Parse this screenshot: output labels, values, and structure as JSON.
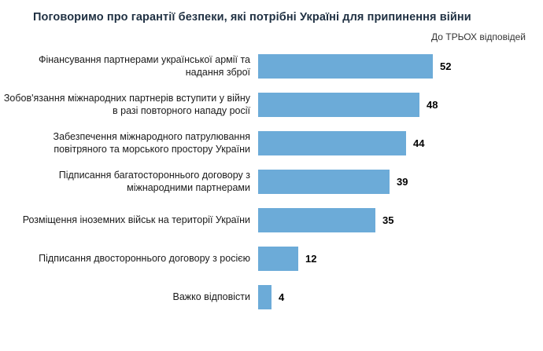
{
  "chart_data": {
    "type": "bar",
    "orientation": "horizontal",
    "title": "Поговоримо про гарантії безпеки, які потрібні Україні для припинення війни",
    "note": "До ТРЬОХ відповідей",
    "categories": [
      "Фінансування партнерами української армії та надання зброї",
      "Зобов'язання міжнародних партнерів вступити у війну в разі повторного нападу росії",
      "Забезпечення міжнародного патрулювання повітряного та морського простору України",
      "Підписання багатостороннього договору з міжнародними партнерами",
      "Розміщення іноземних військ на території України",
      "Підписання двостороннього договору з росією",
      "Важко відповісти"
    ],
    "values": [
      52,
      48,
      44,
      39,
      35,
      12,
      4
    ],
    "xlim": [
      0,
      52
    ],
    "bar_color": "#6cabd8",
    "title_color": "#1f3042",
    "value_labels": true,
    "legend": false,
    "grid": false
  }
}
